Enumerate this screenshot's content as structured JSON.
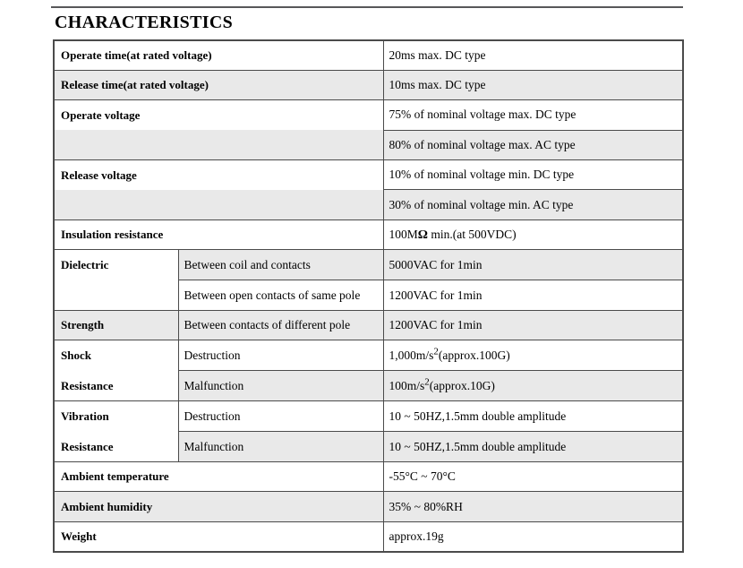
{
  "page": {
    "title": "CHARACTERISTICS"
  },
  "colors": {
    "border": "#4b4b4b",
    "row_stripe": "#e9e9e9",
    "top_rule": "#58585a",
    "text": "#000000"
  },
  "table": {
    "rows": [
      {
        "label": "Operate time(at rated voltage)",
        "value": "20ms max. DC type"
      },
      {
        "label": "Release time(at rated voltage)",
        "value": "10ms max. DC type"
      },
      {
        "label": "Operate voltage",
        "value": "75% of nominal voltage max. DC type"
      },
      {
        "label": "",
        "value": "80% of nominal voltage max. AC type"
      },
      {
        "label": "Release voltage",
        "value": "10% of nominal voltage min. DC type"
      },
      {
        "label": "",
        "value": "30% of nominal voltage min. AC type"
      },
      {
        "label": "Insulation resistance",
        "value_pre": "100M",
        "value_bold": "Ω",
        "value_post": " min.(at 500VDC)"
      },
      {
        "label": "Dielectric",
        "sub": "Between coil and contacts",
        "value": "5000VAC for 1min"
      },
      {
        "sub": "Between open contacts of same pole",
        "value": "1200VAC for 1min"
      },
      {
        "label": "Strength",
        "sub": "Between contacts of different pole",
        "value": "1200VAC for 1min"
      },
      {
        "label_line1": "Shock",
        "label_line2": "Resistance",
        "sub": "Destruction",
        "value_pre": "1,000m/s",
        "value_sup": "2",
        "value_post": "(approx.100G)"
      },
      {
        "sub": "Malfunction",
        "value_pre": "100m/s",
        "value_sup": "2",
        "value_post": "(approx.10G)"
      },
      {
        "label_line1": "Vibration",
        "label_line2": "Resistance",
        "sub": "Destruction",
        "value": "10 ~ 50HZ,1.5mm double amplitude"
      },
      {
        "sub": "Malfunction",
        "value": "10 ~ 50HZ,1.5mm double amplitude"
      },
      {
        "label": "Ambient temperature",
        "value": "-55°C ~ 70°C"
      },
      {
        "label": "Ambient humidity",
        "value": "35% ~ 80%RH"
      },
      {
        "label": "Weight",
        "value": "approx.19g"
      }
    ]
  }
}
